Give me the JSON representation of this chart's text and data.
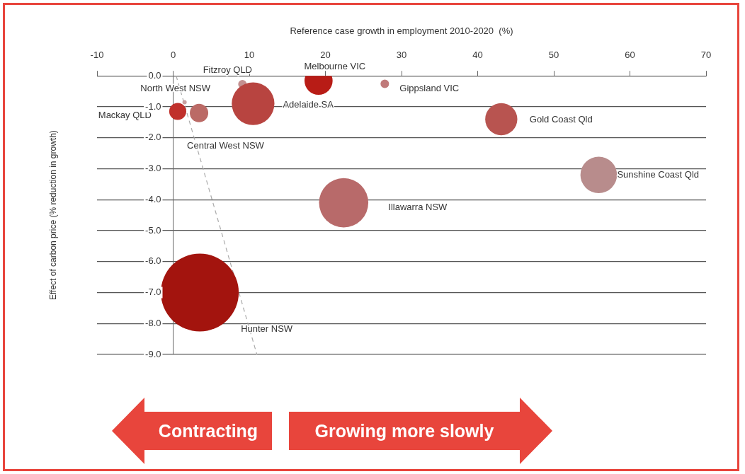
{
  "chart_data": {
    "type": "bubble",
    "xlabel": "Reference case growth in employment 2010-2020  (%)",
    "ylabel": "Effect of carbon price (% reduction in growth)",
    "xlim": [
      -10,
      70
    ],
    "xticks": [
      -10,
      0,
      10,
      20,
      30,
      40,
      50,
      60,
      70
    ],
    "ylim": [
      -9,
      0
    ],
    "yticks": [
      {
        "value": 0,
        "label": "0.0"
      },
      {
        "value": -1,
        "label": "-1.0"
      },
      {
        "value": -2,
        "label": "-2.0"
      },
      {
        "value": -3,
        "label": "-3.0"
      },
      {
        "value": -4,
        "label": "-4.0"
      },
      {
        "value": -5,
        "label": "-5.0"
      },
      {
        "value": -6,
        "label": "-6.0"
      },
      {
        "value": -7,
        "label": "-7.0"
      },
      {
        "value": -8,
        "label": "-8.0"
      },
      {
        "value": -9,
        "label": "-9.0"
      }
    ],
    "grid": "y",
    "legend": false,
    "series": [
      {
        "x": [
          1.5,
          9.1,
          19.1,
          27.8,
          10.5,
          0.6,
          3.4,
          43.1,
          55.9,
          22.4,
          3.5
        ],
        "values": [
          -0.85,
          -0.27,
          -0.16,
          -0.26,
          -0.9,
          -1.15,
          -1.2,
          -1.4,
          -3.2,
          -4.1,
          -7.0
        ],
        "sizes": [
          0.003,
          0.012,
          0.13,
          0.012,
          0.3,
          0.048,
          0.056,
          0.17,
          0.22,
          0.4,
          1
        ],
        "colors": [
          "#c8a0a0",
          "#c49090",
          "#b81c16",
          "#c07a7a",
          "#b84440",
          "#c0302b",
          "#bb6a66",
          "#b85450",
          "#b88c8c",
          "#b86a6a",
          "#a3140e"
        ]
      },
      {
        "type": "line",
        "x": [
          0.4,
          11
        ],
        "values": [
          0,
          -9
        ],
        "color": "#aaaaaa",
        "line_style": "dashed",
        "marker": "none"
      }
    ],
    "annotations": [
      "North West NSW",
      "Fitzroy QLD",
      "Melbourne VIC",
      "Gippsland VIC",
      "Adelaide SA",
      "Mackay QLD",
      "Central West NSW",
      "Gold Coast Qld",
      "Sunshine Coast Qld",
      "Illawarra NSW",
      "Hunter NSW",
      "Contracting",
      "Growing more slowly"
    ]
  }
}
